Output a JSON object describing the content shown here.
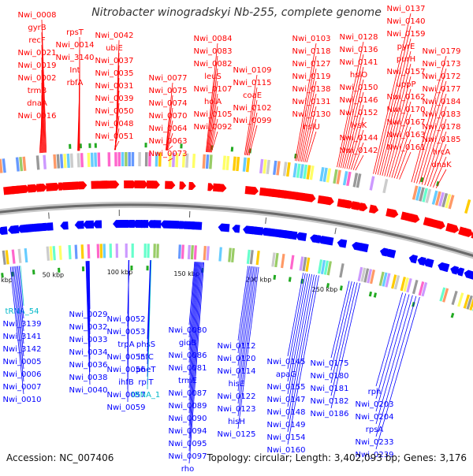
{
  "title": "Nitrobacter winogradskyi Nb-255, complete genome",
  "footer": {
    "accession": "Accession: NC_007406",
    "stats": "Topology: circular; Length: 3,402,093 bp; Genes: 3,176"
  },
  "colors": {
    "forward": "#ff0000",
    "reverse": "#0000ff",
    "rna": "#ff66aa",
    "trna_reverse": "#00b8c8",
    "backbone": "#888888"
  },
  "scale_labels": [
    "3400 kbp",
    "50 kbp",
    "100 kbp",
    "150 kbp",
    "200 kbp",
    "250 kbp"
  ],
  "forward_labels": [
    "Nwi_0008",
    "gyrB",
    "recF",
    "Nwi_0021",
    "Nwi_0019",
    "Nwi_0002",
    "trmB",
    "dnaA",
    "Nwi_0016",
    "rpsT",
    "Nwi_0014",
    "Nwi_3140",
    "Int",
    "rbfA",
    "Nwi_0042",
    "ubiE",
    "Nwi_0037",
    "Nwi_0035",
    "Nwi_0031",
    "Nwi_0039",
    "Nwi_0050",
    "Nwi_0048",
    "Nwi_0051",
    "Nwi_0077",
    "Nwi_0075",
    "Nwi_0074",
    "Nwi_0070",
    "Nwi_0064",
    "Nwi_0063",
    "Nwi_0073",
    "Nwi_0084",
    "Nwi_0083",
    "Nwi_0082",
    "leuS",
    "Nwi_0107",
    "holA",
    "Nwi_0105",
    "Nwi_0092",
    "Nwi_0109",
    "Nwi_0115",
    "coaE",
    "Nwi_0102",
    "Nwi_0099",
    "Nwi_0103",
    "Nwi_0118",
    "Nwi_0127",
    "Nwi_0119",
    "Nwi_0138",
    "Nwi_0131",
    "Nwi_0130",
    "hslU",
    "Nwi_0128",
    "Nwi_0136",
    "Nwi_0141",
    "hslO",
    "Nwi_0150",
    "Nwi_0146",
    "Nwi_0152",
    "lysK",
    "Nwi_0144",
    "Nwi_0142",
    "Nwi_0137",
    "Nwi_0140",
    "Nwi_0159",
    "pyrE",
    "purH",
    "Nwi_0157",
    "uppP",
    "Nwi_0162",
    "Nwi_0170",
    "Nwi_0167",
    "Nwi_0163",
    "Nwi_0161",
    "Nwi_0179",
    "Nwi_0173",
    "Nwi_0172",
    "Nwi_0177",
    "Nwi_0184",
    "Nwi_0183",
    "Nwi_0178",
    "Nwi_0185",
    "hrcA",
    "dnaK"
  ],
  "rna_labels": [
    "tRNA_2",
    "tRNA_3"
  ],
  "reverse_labels": [
    "tRNA_54",
    "Nwi_3139",
    "Nwi_3141",
    "Nwi_3142",
    "Nwi_0005",
    "Nwi_0006",
    "Nwi_0007",
    "Nwi_0010",
    "Nwi_0029",
    "Nwi_0032",
    "Nwi_0033",
    "Nwi_0034",
    "Nwi_0036",
    "Nwi_0038",
    "Nwi_0040",
    "Nwi_0052",
    "Nwi_0053",
    "trpA",
    "Nwi_0055",
    "Nwi_0056",
    "ihfB",
    "Nwi_0057",
    "Nwi_0059",
    "phsS",
    "infC",
    "pheT",
    "rplT",
    "tRNA_1",
    "Nwi_0080",
    "gidB",
    "Nwi_0086",
    "Nwi_0081",
    "trmE",
    "Nwi_0087",
    "Nwi_0089",
    "Nwi_0090",
    "Nwi_0094",
    "Nwi_0095",
    "Nwi_0097",
    "rho",
    "Nwi_0112",
    "Nwi_0120",
    "Nwi_0114",
    "hisE",
    "Nwi_0122",
    "Nwi_0123",
    "hisH",
    "Nwi_0125",
    "Nwi_0145",
    "apaG",
    "Nwi_0155",
    "Nwi_0147",
    "Nwi_0148",
    "Nwi_0149",
    "Nwi_0154",
    "Nwi_0160",
    "Nwi_0175",
    "Nwi_0180",
    "Nwi_0181",
    "Nwi_0182",
    "Nwi_0186",
    "rph",
    "Nwi_0203",
    "Nwi_0204",
    "rpsA",
    "Nwi_0233",
    "Nwi_0239"
  ]
}
